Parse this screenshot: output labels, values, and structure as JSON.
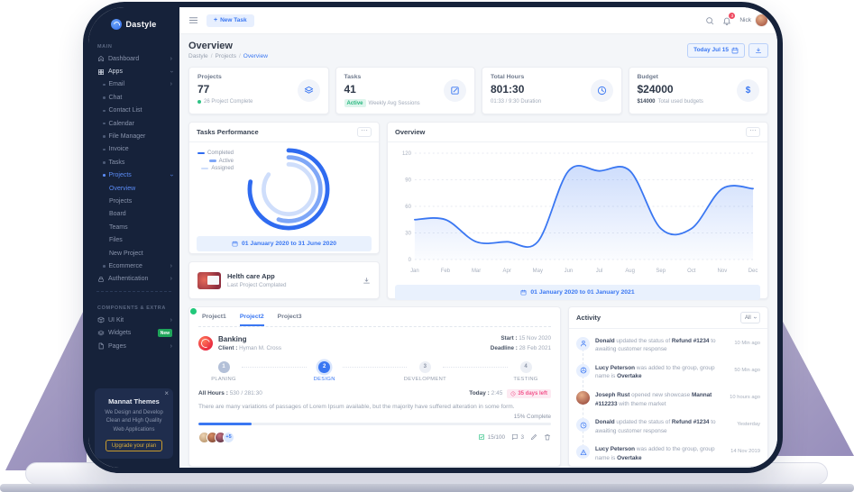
{
  "navbar": {
    "new_task": "New Task",
    "user_name": "Nick",
    "notification_count": "3"
  },
  "header": {
    "title": "Overview",
    "breadcrumb": [
      "Dastyle",
      "Projects",
      "Overview"
    ],
    "date_button": "Today Jul 15"
  },
  "sidebar": {
    "logo": "Dastyle",
    "section_main": "MAIN",
    "items": {
      "dashboard": "Dashboard",
      "apps": "Apps",
      "email": "Email",
      "chat": "Chat",
      "contact_list": "Contact List",
      "calendar": "Calendar",
      "file_manager": "File Manager",
      "invoice": "Invoice",
      "tasks": "Tasks",
      "projects": "Projects",
      "overview": "Overview",
      "projects_sub": "Projects",
      "board": "Board",
      "teams": "Teams",
      "files": "Files",
      "new_project": "New Project",
      "ecommerce": "Ecommerce",
      "authentication": "Authentication",
      "ui_kit": "UI Kit",
      "widgets": "Widgets",
      "pages": "Pages"
    },
    "widgets_badge": "New",
    "section_components": "COMPONENTS & EXTRA",
    "promo": {
      "title": "Mannat Themes",
      "description": "We Design and Develop Clean and High Quality Web Applications",
      "button": "Upgrade your plan"
    }
  },
  "stats": [
    {
      "label": "Projects",
      "value": "77",
      "sub": "26 Project Complete"
    },
    {
      "label": "Tasks",
      "value": "41",
      "badge": "Active",
      "sub": "Weekly Avg Sessions"
    },
    {
      "label": "Total Hours",
      "value": "801:30",
      "sub": "01:33 / 9:30 Duration"
    },
    {
      "label": "Budget",
      "value": "$24000",
      "sub_strong": "$14000",
      "sub": "Total used budgets"
    }
  ],
  "tasks_performance": {
    "title": "Tasks Performance",
    "date_range": "01 January 2020 to 31 June 2020"
  },
  "overview_card": {
    "title": "Overview",
    "date_range": "01 January 2020 to 01 January 2021"
  },
  "completed_project": {
    "title": "Helth care App",
    "subtitle": "Last Project Complated"
  },
  "project_panel": {
    "tabs": [
      "Project1",
      "Project2",
      "Project3"
    ],
    "name": "Banking",
    "client_label": "Client :",
    "client": "Hyman M. Cross",
    "start_label": "Start :",
    "start": "15 Nov 2020",
    "deadline_label": "Deadline :",
    "deadline": "28 Feb 2021",
    "steps": [
      {
        "num": "1",
        "label": "PLANING"
      },
      {
        "num": "2",
        "label": "DESIGN"
      },
      {
        "num": "3",
        "label": "DEVELOPMENT"
      },
      {
        "num": "4",
        "label": "TESTING"
      }
    ],
    "all_hours_label": "All Hours :",
    "all_hours": "530 / 281:30",
    "today_label": "Today :",
    "today": "2:45",
    "days_left": "35 days left",
    "description": "There are many variations of passages of Lorem Ipsum available, but the majority have suffered alteration in some form.",
    "progress_label": "15% Complete",
    "progress_percent": 15,
    "extra_avatars": "+5",
    "checklist": "15/100",
    "comments": "3"
  },
  "activity": {
    "title": "Activity",
    "filter": "All",
    "items": [
      {
        "p0": "Donald",
        "p1": " updated the status of ",
        "p2": "Refund #1234",
        "p3": " to awaiting customer response",
        "time": "10 Min ago"
      },
      {
        "p0": "Lucy Peterson",
        "p1": " was added to the group, group name is ",
        "p2": "Overtake",
        "p3": "",
        "time": "50 Min ago"
      },
      {
        "p0": "Joseph Rust",
        "p1": " opened new showcase ",
        "p2": "Mannat #112233",
        "p3": " with theme market",
        "time": "10 hours ago"
      },
      {
        "p0": "Donald",
        "p1": " updated the status of ",
        "p2": "Refund #1234",
        "p3": " to awaiting customer response",
        "time": "Yesterday"
      },
      {
        "p0": "Lucy Peterson",
        "p1": " was added to the group, group name is ",
        "p2": "Overtake",
        "p3": "",
        "time": "14 Nov 2019"
      }
    ]
  },
  "chart_data": [
    {
      "type": "radialBar",
      "title": "Tasks Performance",
      "series": [
        {
          "name": "Completed",
          "value": 78
        },
        {
          "name": "Active",
          "value": 55
        },
        {
          "name": "Assigned",
          "value": 85
        }
      ],
      "colors": [
        "#2f6bf0",
        "#7fa7f7",
        "#cfdefb"
      ],
      "legend_position": "top-left"
    },
    {
      "type": "area",
      "title": "Overview",
      "x": [
        "Jan",
        "Feb",
        "Mar",
        "Apr",
        "May",
        "Jun",
        "Jul",
        "Aug",
        "Sep",
        "Oct",
        "Nov",
        "Dec"
      ],
      "values": [
        45,
        45,
        20,
        20,
        20,
        100,
        100,
        100,
        35,
        35,
        80,
        80
      ],
      "ylim": [
        0,
        120
      ],
      "yticks": [
        0,
        30,
        60,
        90,
        120
      ],
      "color": "#3a77f2",
      "grid": "dotted"
    }
  ],
  "colors": {
    "primary": "#3a77f2",
    "sidebar_bg": "#16223a",
    "green": "#2ec284",
    "red": "#ef4c62",
    "pink": "#f2548c",
    "yellow": "#d9ad3c"
  }
}
